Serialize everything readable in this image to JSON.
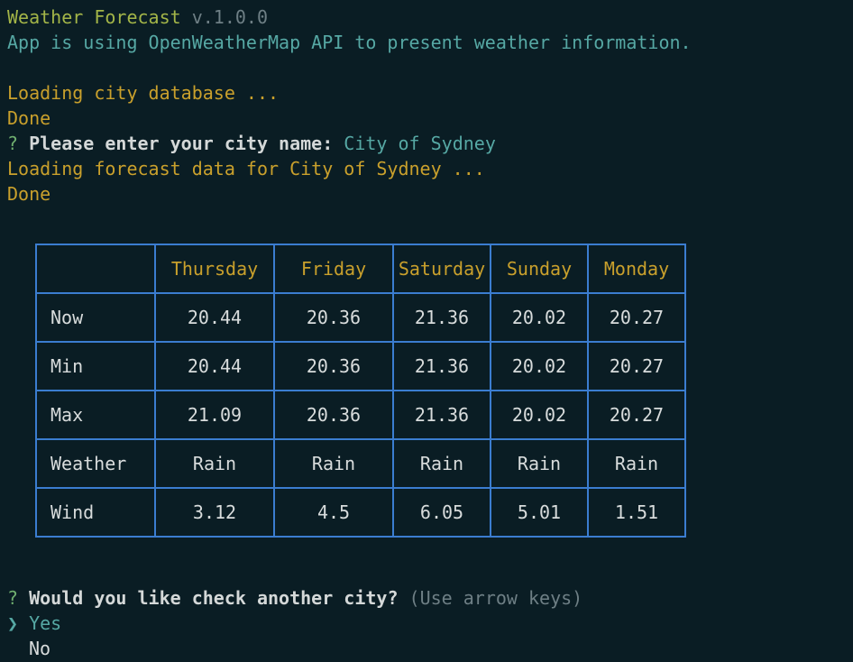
{
  "header": {
    "title": "Weather Forecast",
    "version": "v.1.0.0",
    "description": "App is using OpenWeatherMap API to present weather information."
  },
  "database_log": [
    "Loading city database ...",
    "Done"
  ],
  "city_prompt": {
    "marker": "?",
    "question": "Please enter your city name:",
    "answer": "City of Sydney"
  },
  "forecast_log": [
    "Loading forecast data for City of Sydney ...",
    "Done"
  ],
  "table": {
    "columns": [
      "Thursday",
      "Friday",
      "Saturday",
      "Sunday",
      "Monday"
    ],
    "rows": [
      {
        "label": "Now",
        "values": [
          20.44,
          20.36,
          21.36,
          20.02,
          20.27
        ]
      },
      {
        "label": "Min",
        "values": [
          20.44,
          20.36,
          21.36,
          20.02,
          20.27
        ]
      },
      {
        "label": "Max",
        "values": [
          21.09,
          20.36,
          21.36,
          20.02,
          20.27
        ]
      },
      {
        "label": "Weather",
        "values": [
          "Rain",
          "Rain",
          "Rain",
          "Rain",
          "Rain"
        ]
      },
      {
        "label": "Wind",
        "values": [
          3.12,
          4.5,
          6.05,
          5.01,
          1.51
        ]
      }
    ]
  },
  "next_prompt": {
    "marker": "?",
    "question": "Would you like check another city?",
    "hint": "(Use arrow keys)",
    "choices": [
      {
        "pointer": "❯",
        "label": "Yes"
      },
      {
        "label": "No"
      }
    ]
  }
}
